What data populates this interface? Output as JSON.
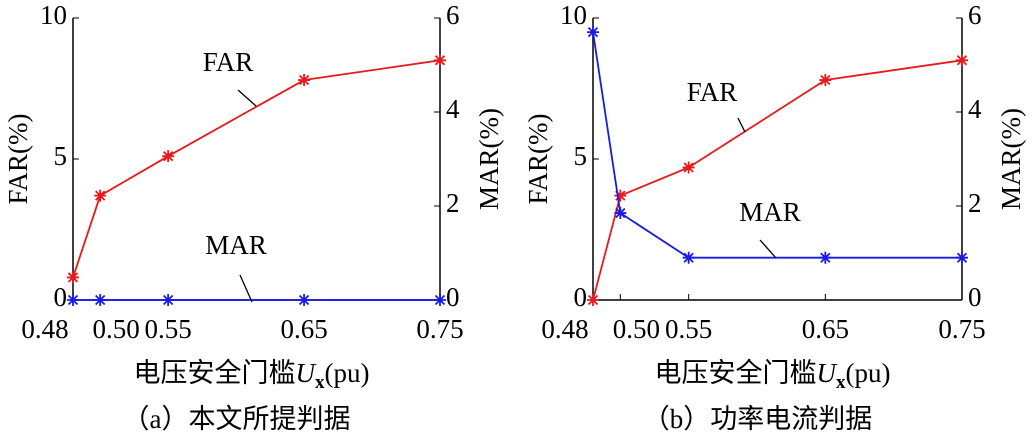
{
  "chart_data": [
    {
      "type": "line",
      "caption": "（a）本文所提判据",
      "x_label": {
        "prefix": "电压安全门槛",
        "var": "U",
        "sub": "x",
        "suffix": "(pu)"
      },
      "y_label": "FAR(%)",
      "y2_label": "MAR(%)",
      "x": [
        0.48,
        0.5,
        0.55,
        0.65,
        0.75
      ],
      "xlim": [
        0.48,
        0.75
      ],
      "xticks": [
        0.48,
        {
          "value": 0.5,
          "label": "0.50"
        },
        0.55,
        0.65,
        0.75
      ],
      "ylim": [
        0,
        10
      ],
      "yticks": [
        0,
        5,
        10
      ],
      "y2lim": [
        0,
        6
      ],
      "y2ticks": [
        0,
        2,
        4,
        6
      ],
      "series": [
        {
          "name": "FAR",
          "color": "#e8191c",
          "values": [
            0.8,
            3.7,
            5.1,
            7.8,
            8.5
          ]
        },
        {
          "name": "MAR",
          "color": "#1a1ae6",
          "axis": "y2",
          "values": [
            0,
            0,
            0,
            0,
            0
          ]
        }
      ]
    },
    {
      "type": "line",
      "caption": "（b）功率电流判据",
      "x_label": {
        "prefix": "电压安全门槛",
        "var": "U",
        "sub": "x",
        "suffix": "(pu)"
      },
      "y_label": "FAR(%)",
      "y2_label": "MAR(%)",
      "x": [
        0.48,
        0.5,
        0.55,
        0.65,
        0.75
      ],
      "xlim": [
        0.48,
        0.75
      ],
      "xticks": [
        0.48,
        {
          "value": 0.5,
          "label": "0.50"
        },
        0.55,
        0.65,
        0.75
      ],
      "ylim": [
        0,
        10
      ],
      "yticks": [
        0,
        5,
        10
      ],
      "y2lim": [
        0,
        6
      ],
      "y2ticks": [
        0,
        2,
        4,
        6
      ],
      "series": [
        {
          "name": "FAR",
          "color": "#e8191c",
          "values": [
            0,
            3.7,
            4.7,
            7.8,
            8.5
          ]
        },
        {
          "name": "MAR",
          "color": "#1a1ae6",
          "axis": "y2",
          "values": [
            5.7,
            1.85,
            0.9,
            0.9,
            0.9
          ]
        }
      ]
    }
  ]
}
